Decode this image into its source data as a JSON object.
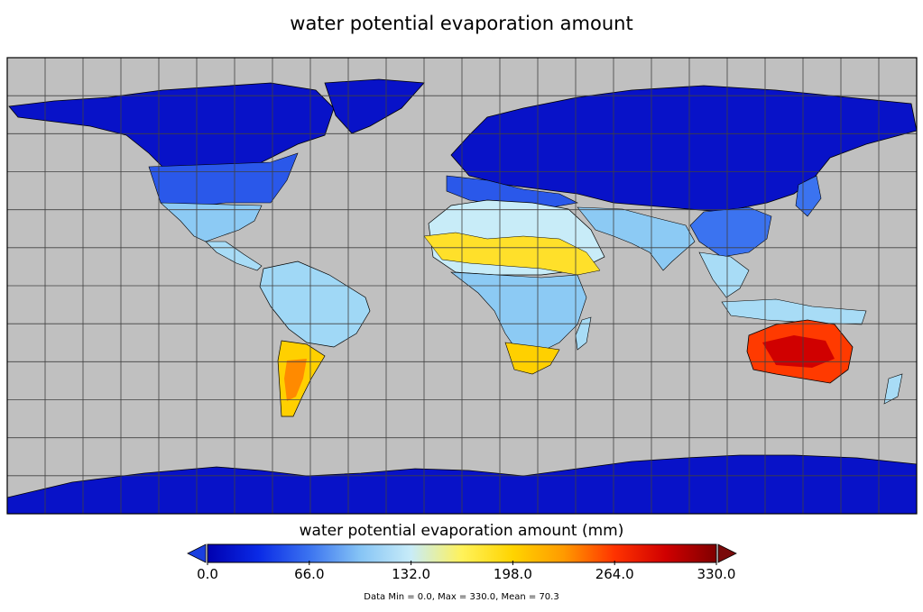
{
  "title": "water potential evaporation amount",
  "colorbar": {
    "label": "water potential evaporation amount (mm)",
    "ticks": [
      "0.0",
      "66.0",
      "132.0",
      "198.0",
      "264.0",
      "330.0"
    ],
    "min": 0,
    "max": 330,
    "colors": [
      "#0000b0",
      "#0a2ae6",
      "#3b73f0",
      "#86c4f5",
      "#c8ecf8",
      "#fff25a",
      "#ffd400",
      "#ff9a00",
      "#ff3300",
      "#d00000",
      "#800000"
    ],
    "extend_low_color": "#1a3fe0",
    "extend_high_color": "#7a0a0a"
  },
  "stats_line": "Data Min = 0.0, Max = 330.0, Mean = 70.3",
  "map": {
    "projection": "equirectangular",
    "background_color": "#c0c0c0",
    "grid": true,
    "grid_spacing_degrees": 15
  }
}
